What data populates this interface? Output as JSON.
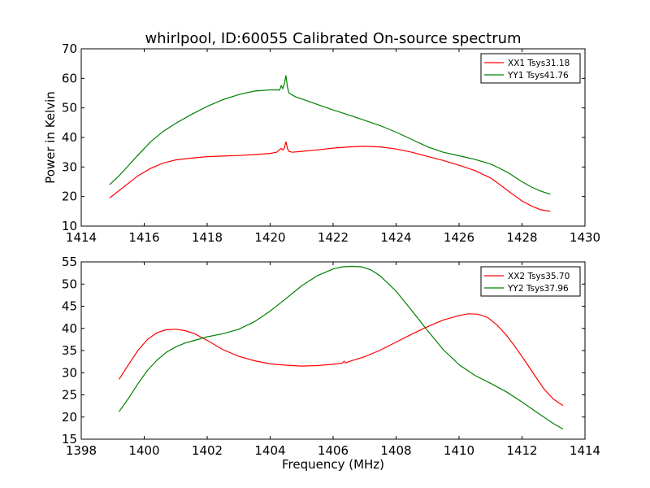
{
  "figure": {
    "title": "whirlpool, ID:60055 Calibrated On-source spectrum"
  },
  "chart_data": [
    {
      "type": "line",
      "title": "whirlpool, ID:60055 Calibrated On-source spectrum",
      "xlabel": "",
      "ylabel": "Power in Kelvin",
      "xlim": [
        1414,
        1430
      ],
      "ylim": [
        10,
        70
      ],
      "xticks": [
        1414,
        1416,
        1418,
        1420,
        1422,
        1424,
        1426,
        1428,
        1430
      ],
      "yticks": [
        10,
        20,
        30,
        40,
        50,
        60,
        70
      ],
      "grid": false,
      "legend": "top-right",
      "series": [
        {
          "name": "XX1 Tsys31.18",
          "color": "#ff0000",
          "x": [
            1414.9,
            1415.2,
            1415.5,
            1415.8,
            1416.2,
            1416.6,
            1417.0,
            1417.5,
            1418.0,
            1418.5,
            1419.0,
            1419.5,
            1420.0,
            1420.2,
            1420.35,
            1420.4,
            1420.45,
            1420.5,
            1420.55,
            1420.6,
            1420.7,
            1421.0,
            1421.5,
            1422.0,
            1422.5,
            1423.0,
            1423.5,
            1424.0,
            1424.5,
            1425.0,
            1425.5,
            1426.0,
            1426.5,
            1427.0,
            1427.3,
            1427.6,
            1428.0,
            1428.3,
            1428.6,
            1428.9
          ],
          "y": [
            19.5,
            22.0,
            24.5,
            27.0,
            29.5,
            31.3,
            32.4,
            33.0,
            33.5,
            33.7,
            33.9,
            34.2,
            34.6,
            35.0,
            36.3,
            35.8,
            36.3,
            38.6,
            36.2,
            35.3,
            35.0,
            35.3,
            35.8,
            36.4,
            36.8,
            37.0,
            36.8,
            36.1,
            35.0,
            33.6,
            32.2,
            30.6,
            28.8,
            26.3,
            24.0,
            21.6,
            18.5,
            16.8,
            15.5,
            15.0
          ]
        },
        {
          "name": "YY1 Tsys41.76",
          "color": "#008000",
          "x": [
            1414.9,
            1415.2,
            1415.5,
            1415.8,
            1416.2,
            1416.6,
            1417.0,
            1417.5,
            1418.0,
            1418.5,
            1419.0,
            1419.5,
            1420.0,
            1420.2,
            1420.3,
            1420.35,
            1420.4,
            1420.45,
            1420.5,
            1420.55,
            1420.6,
            1420.8,
            1421.2,
            1421.6,
            1422.0,
            1422.5,
            1423.0,
            1423.5,
            1424.0,
            1424.5,
            1425.0,
            1425.5,
            1426.0,
            1426.5,
            1427.0,
            1427.3,
            1427.6,
            1428.0,
            1428.3,
            1428.6,
            1428.9
          ],
          "y": [
            24.0,
            27.0,
            30.5,
            34.0,
            38.5,
            42.0,
            44.8,
            47.8,
            50.5,
            52.8,
            54.5,
            55.7,
            56.1,
            56.1,
            56.0,
            57.5,
            56.5,
            58.0,
            61.0,
            57.0,
            55.0,
            53.8,
            52.3,
            50.8,
            49.3,
            47.6,
            45.8,
            44.0,
            41.8,
            39.3,
            36.8,
            35.0,
            33.8,
            32.6,
            31.0,
            29.5,
            27.8,
            25.0,
            23.2,
            21.8,
            20.8
          ]
        }
      ]
    },
    {
      "type": "line",
      "title": "",
      "xlabel": "Frequency (MHz)",
      "ylabel": "",
      "xlim": [
        1398,
        1414
      ],
      "ylim": [
        15,
        55
      ],
      "xticks": [
        1398,
        1400,
        1402,
        1404,
        1406,
        1408,
        1410,
        1412,
        1414
      ],
      "yticks": [
        15,
        20,
        25,
        30,
        35,
        40,
        45,
        50,
        55
      ],
      "grid": false,
      "legend": "top-right",
      "series": [
        {
          "name": "XX2 Tsys35.70",
          "color": "#ff0000",
          "x": [
            1399.2,
            1399.5,
            1399.8,
            1400.1,
            1400.4,
            1400.7,
            1401.0,
            1401.3,
            1401.6,
            1402.0,
            1402.5,
            1403.0,
            1403.5,
            1404.0,
            1404.5,
            1405.0,
            1405.5,
            1406.0,
            1406.3,
            1406.35,
            1406.4,
            1406.5,
            1407.0,
            1407.5,
            1408.0,
            1408.5,
            1409.0,
            1409.5,
            1410.0,
            1410.3,
            1410.6,
            1410.9,
            1411.2,
            1411.5,
            1411.8,
            1412.1,
            1412.4,
            1412.7,
            1413.0,
            1413.3
          ],
          "y": [
            28.5,
            31.8,
            35.0,
            37.5,
            39.0,
            39.7,
            39.8,
            39.5,
            38.8,
            37.3,
            35.2,
            33.7,
            32.7,
            32.0,
            31.7,
            31.5,
            31.6,
            31.9,
            32.2,
            32.6,
            32.2,
            32.5,
            33.6,
            35.1,
            36.9,
            38.7,
            40.4,
            41.9,
            42.9,
            43.3,
            43.2,
            42.5,
            40.8,
            38.5,
            35.7,
            32.6,
            29.4,
            26.3,
            24.0,
            22.6
          ]
        },
        {
          "name": "YY2 Tsys37.96",
          "color": "#008000",
          "x": [
            1399.2,
            1399.5,
            1399.8,
            1400.1,
            1400.4,
            1400.7,
            1401.0,
            1401.3,
            1401.6,
            1402.0,
            1402.5,
            1403.0,
            1403.5,
            1404.0,
            1404.5,
            1405.0,
            1405.5,
            1406.0,
            1406.3,
            1406.6,
            1406.9,
            1407.2,
            1407.5,
            1408.0,
            1408.5,
            1409.0,
            1409.5,
            1410.0,
            1410.5,
            1411.0,
            1411.5,
            1412.0,
            1412.5,
            1413.0,
            1413.3
          ],
          "y": [
            21.2,
            24.2,
            27.5,
            30.5,
            32.8,
            34.6,
            35.8,
            36.7,
            37.3,
            38.1,
            38.8,
            39.8,
            41.5,
            43.9,
            46.7,
            49.6,
            51.9,
            53.4,
            53.9,
            54.0,
            53.9,
            53.2,
            51.8,
            48.4,
            44.0,
            39.5,
            35.2,
            31.8,
            29.4,
            27.6,
            25.7,
            23.4,
            20.9,
            18.5,
            17.3
          ]
        }
      ]
    }
  ]
}
